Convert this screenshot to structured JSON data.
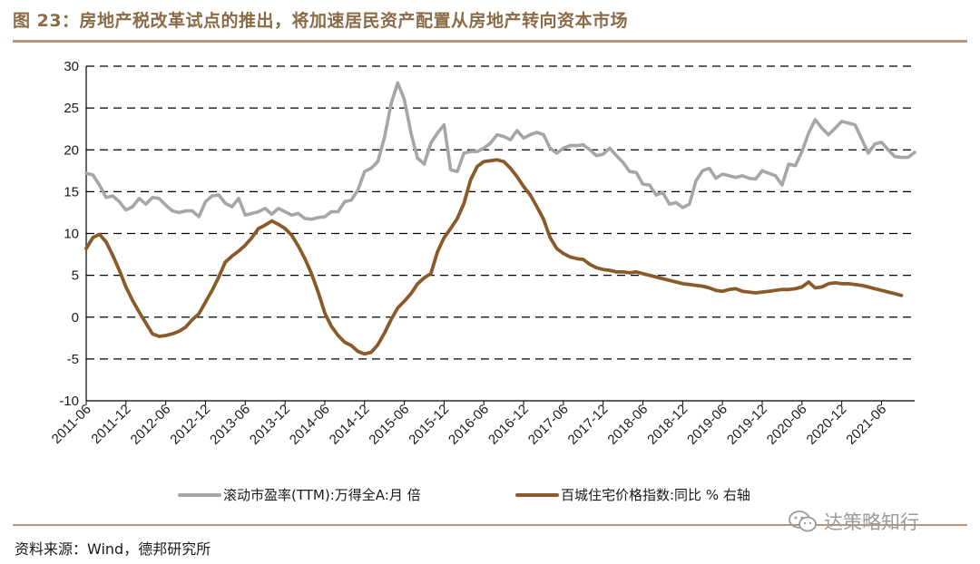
{
  "header": {
    "title": "图 23：房地产税改革试点的推出，将加速居民资产配置从房地产转向资本市场"
  },
  "footer": {
    "source": "资料来源：Wind，德邦研究所",
    "watermark": "达策略知行"
  },
  "chart_data": {
    "type": "line",
    "ylim": [
      -10,
      30
    ],
    "y_ticks": [
      30,
      25,
      20,
      15,
      10,
      5,
      0,
      -5,
      -10
    ],
    "grid": true,
    "legend_position": "bottom",
    "x_ticks": [
      "2011-06",
      "2011-12",
      "2012-06",
      "2012-12",
      "2013-06",
      "2013-12",
      "2014-06",
      "2014-12",
      "2015-06",
      "2015-12",
      "2016-06",
      "2016-12",
      "2017-06",
      "2017-12",
      "2018-06",
      "2018-12",
      "2019-06",
      "2019-12",
      "2020-06",
      "2020-12",
      "2021-06"
    ],
    "series": [
      {
        "name": "滚动市盈率(TTM):万得全A:月 倍",
        "color": "#a6a6a6",
        "points": [
          [
            "2011-06",
            17.2
          ],
          [
            "2011-07",
            17.0
          ],
          [
            "2011-08",
            15.8
          ],
          [
            "2011-09",
            14.3
          ],
          [
            "2011-10",
            14.5
          ],
          [
            "2011-11",
            13.8
          ],
          [
            "2011-12",
            12.8
          ],
          [
            "2012-01",
            13.2
          ],
          [
            "2012-02",
            14.2
          ],
          [
            "2012-03",
            13.5
          ],
          [
            "2012-04",
            14.3
          ],
          [
            "2012-05",
            14.2
          ],
          [
            "2012-06",
            13.4
          ],
          [
            "2012-07",
            12.7
          ],
          [
            "2012-08",
            12.5
          ],
          [
            "2012-09",
            12.7
          ],
          [
            "2012-10",
            12.7
          ],
          [
            "2012-11",
            12.0
          ],
          [
            "2012-12",
            13.8
          ],
          [
            "2013-01",
            14.5
          ],
          [
            "2013-02",
            14.6
          ],
          [
            "2013-03",
            13.6
          ],
          [
            "2013-04",
            13.2
          ],
          [
            "2013-05",
            14.2
          ],
          [
            "2013-06",
            12.2
          ],
          [
            "2013-07",
            12.4
          ],
          [
            "2013-08",
            12.6
          ],
          [
            "2013-09",
            13.0
          ],
          [
            "2013-10",
            12.3
          ],
          [
            "2013-11",
            13.0
          ],
          [
            "2013-12",
            12.6
          ],
          [
            "2014-01",
            12.2
          ],
          [
            "2014-02",
            12.4
          ],
          [
            "2014-03",
            11.8
          ],
          [
            "2014-04",
            11.7
          ],
          [
            "2014-05",
            11.9
          ],
          [
            "2014-06",
            12.0
          ],
          [
            "2014-07",
            12.6
          ],
          [
            "2014-08",
            12.6
          ],
          [
            "2014-09",
            13.8
          ],
          [
            "2014-10",
            14.0
          ],
          [
            "2014-11",
            15.2
          ],
          [
            "2014-12",
            17.4
          ],
          [
            "2015-01",
            17.8
          ],
          [
            "2015-02",
            18.6
          ],
          [
            "2015-03",
            21.5
          ],
          [
            "2015-04",
            25.5
          ],
          [
            "2015-05",
            28.0
          ],
          [
            "2015-06",
            26.0
          ],
          [
            "2015-07",
            22.0
          ],
          [
            "2015-08",
            19.0
          ],
          [
            "2015-09",
            18.3
          ],
          [
            "2015-10",
            20.8
          ],
          [
            "2015-11",
            22.0
          ],
          [
            "2015-12",
            23.0
          ],
          [
            "2016-01",
            17.6
          ],
          [
            "2016-02",
            17.4
          ],
          [
            "2016-03",
            19.6
          ],
          [
            "2016-04",
            19.8
          ],
          [
            "2016-05",
            19.8
          ],
          [
            "2016-06",
            20.2
          ],
          [
            "2016-07",
            20.8
          ],
          [
            "2016-08",
            21.8
          ],
          [
            "2016-09",
            21.6
          ],
          [
            "2016-10",
            21.2
          ],
          [
            "2016-11",
            22.3
          ],
          [
            "2016-12",
            21.4
          ],
          [
            "2017-01",
            21.8
          ],
          [
            "2017-02",
            22.1
          ],
          [
            "2017-03",
            21.8
          ],
          [
            "2017-04",
            20.2
          ],
          [
            "2017-05",
            19.6
          ],
          [
            "2017-06",
            20.2
          ],
          [
            "2017-07",
            20.5
          ],
          [
            "2017-08",
            20.5
          ],
          [
            "2017-09",
            20.6
          ],
          [
            "2017-10",
            20.0
          ],
          [
            "2017-11",
            19.3
          ],
          [
            "2017-12",
            19.5
          ],
          [
            "2018-01",
            20.2
          ],
          [
            "2018-02",
            19.3
          ],
          [
            "2018-03",
            18.5
          ],
          [
            "2018-04",
            17.4
          ],
          [
            "2018-05",
            17.3
          ],
          [
            "2018-06",
            15.9
          ],
          [
            "2018-07",
            15.8
          ],
          [
            "2018-08",
            14.6
          ],
          [
            "2018-09",
            14.9
          ],
          [
            "2018-10",
            13.5
          ],
          [
            "2018-11",
            13.7
          ],
          [
            "2018-12",
            13.1
          ],
          [
            "2019-01",
            13.5
          ],
          [
            "2019-02",
            16.3
          ],
          [
            "2019-03",
            17.5
          ],
          [
            "2019-04",
            17.8
          ],
          [
            "2019-05",
            16.6
          ],
          [
            "2019-06",
            17.1
          ],
          [
            "2019-07",
            16.9
          ],
          [
            "2019-08",
            16.7
          ],
          [
            "2019-09",
            16.9
          ],
          [
            "2019-10",
            16.6
          ],
          [
            "2019-11",
            16.5
          ],
          [
            "2019-12",
            17.5
          ],
          [
            "2020-01",
            17.2
          ],
          [
            "2020-02",
            16.9
          ],
          [
            "2020-03",
            15.8
          ],
          [
            "2020-04",
            18.3
          ],
          [
            "2020-05",
            18.1
          ],
          [
            "2020-06",
            19.8
          ],
          [
            "2020-07",
            22.0
          ],
          [
            "2020-08",
            23.6
          ],
          [
            "2020-09",
            22.6
          ],
          [
            "2020-10",
            21.8
          ],
          [
            "2020-11",
            22.6
          ],
          [
            "2020-12",
            23.4
          ],
          [
            "2021-01",
            23.2
          ],
          [
            "2021-02",
            23.0
          ],
          [
            "2021-03",
            21.3
          ],
          [
            "2021-04",
            19.6
          ],
          [
            "2021-05",
            20.7
          ],
          [
            "2021-06",
            20.9
          ],
          [
            "2021-07",
            20.0
          ],
          [
            "2021-08",
            19.2
          ],
          [
            "2021-09",
            19.1
          ],
          [
            "2021-10",
            19.1
          ],
          [
            "2021-11",
            19.7
          ]
        ]
      },
      {
        "name": "百城住宅价格指数:同比 % 右轴",
        "color": "#8b5a2b",
        "points": [
          [
            "2011-06",
            8.2
          ],
          [
            "2011-07",
            9.5
          ],
          [
            "2011-08",
            9.9
          ],
          [
            "2011-09",
            9.0
          ],
          [
            "2011-10",
            7.4
          ],
          [
            "2011-11",
            5.6
          ],
          [
            "2011-12",
            3.6
          ],
          [
            "2012-01",
            2.0
          ],
          [
            "2012-02",
            0.6
          ],
          [
            "2012-03",
            -0.7
          ],
          [
            "2012-04",
            -2.0
          ],
          [
            "2012-05",
            -2.3
          ],
          [
            "2012-06",
            -2.2
          ],
          [
            "2012-07",
            -2.0
          ],
          [
            "2012-08",
            -1.7
          ],
          [
            "2012-09",
            -1.2
          ],
          [
            "2012-10",
            -0.3
          ],
          [
            "2012-11",
            0.4
          ],
          [
            "2012-12",
            1.8
          ],
          [
            "2013-01",
            3.2
          ],
          [
            "2013-02",
            4.8
          ],
          [
            "2013-03",
            6.6
          ],
          [
            "2013-04",
            7.3
          ],
          [
            "2013-05",
            7.9
          ],
          [
            "2013-06",
            8.6
          ],
          [
            "2013-07",
            9.5
          ],
          [
            "2013-08",
            10.6
          ],
          [
            "2013-09",
            11.0
          ],
          [
            "2013-10",
            11.5
          ],
          [
            "2013-11",
            11.1
          ],
          [
            "2013-12",
            10.6
          ],
          [
            "2014-01",
            9.8
          ],
          [
            "2014-02",
            8.5
          ],
          [
            "2014-03",
            7.0
          ],
          [
            "2014-04",
            5.2
          ],
          [
            "2014-05",
            3.0
          ],
          [
            "2014-06",
            0.5
          ],
          [
            "2014-07",
            -1.1
          ],
          [
            "2014-08",
            -2.2
          ],
          [
            "2014-09",
            -3.0
          ],
          [
            "2014-10",
            -3.4
          ],
          [
            "2014-11",
            -4.1
          ],
          [
            "2014-12",
            -4.4
          ],
          [
            "2015-01",
            -4.2
          ],
          [
            "2015-02",
            -3.3
          ],
          [
            "2015-03",
            -1.9
          ],
          [
            "2015-04",
            -0.3
          ],
          [
            "2015-05",
            1.1
          ],
          [
            "2015-06",
            1.9
          ],
          [
            "2015-07",
            2.8
          ],
          [
            "2015-08",
            4.0
          ],
          [
            "2015-09",
            4.7
          ],
          [
            "2015-10",
            5.2
          ],
          [
            "2015-11",
            7.8
          ],
          [
            "2015-12",
            9.5
          ],
          [
            "2016-01",
            10.6
          ],
          [
            "2016-02",
            11.8
          ],
          [
            "2016-03",
            13.6
          ],
          [
            "2016-04",
            16.4
          ],
          [
            "2016-05",
            18.0
          ],
          [
            "2016-06",
            18.6
          ],
          [
            "2016-07",
            18.7
          ],
          [
            "2016-08",
            18.8
          ],
          [
            "2016-09",
            18.6
          ],
          [
            "2016-10",
            17.8
          ],
          [
            "2016-11",
            16.8
          ],
          [
            "2016-12",
            15.6
          ],
          [
            "2017-01",
            14.6
          ],
          [
            "2017-02",
            13.2
          ],
          [
            "2017-03",
            11.7
          ],
          [
            "2017-04",
            9.5
          ],
          [
            "2017-05",
            8.2
          ],
          [
            "2017-06",
            7.6
          ],
          [
            "2017-07",
            7.2
          ],
          [
            "2017-08",
            7.0
          ],
          [
            "2017-09",
            6.9
          ],
          [
            "2017-10",
            6.3
          ],
          [
            "2017-11",
            5.9
          ],
          [
            "2017-12",
            5.7
          ],
          [
            "2018-01",
            5.6
          ],
          [
            "2018-02",
            5.4
          ],
          [
            "2018-03",
            5.4
          ],
          [
            "2018-04",
            5.3
          ],
          [
            "2018-05",
            5.4
          ],
          [
            "2018-06",
            5.2
          ],
          [
            "2018-07",
            5.0
          ],
          [
            "2018-08",
            4.8
          ],
          [
            "2018-09",
            4.6
          ],
          [
            "2018-10",
            4.4
          ],
          [
            "2018-11",
            4.2
          ],
          [
            "2018-12",
            4.0
          ],
          [
            "2019-01",
            3.9
          ],
          [
            "2019-02",
            3.8
          ],
          [
            "2019-03",
            3.7
          ],
          [
            "2019-04",
            3.5
          ],
          [
            "2019-05",
            3.2
          ],
          [
            "2019-06",
            3.1
          ],
          [
            "2019-07",
            3.3
          ],
          [
            "2019-08",
            3.4
          ],
          [
            "2019-09",
            3.1
          ],
          [
            "2019-10",
            3.0
          ],
          [
            "2019-11",
            2.9
          ],
          [
            "2019-12",
            3.0
          ],
          [
            "2020-01",
            3.1
          ],
          [
            "2020-02",
            3.2
          ],
          [
            "2020-03",
            3.3
          ],
          [
            "2020-04",
            3.3
          ],
          [
            "2020-05",
            3.4
          ],
          [
            "2020-06",
            3.6
          ],
          [
            "2020-07",
            4.2
          ],
          [
            "2020-08",
            3.5
          ],
          [
            "2020-09",
            3.6
          ],
          [
            "2020-10",
            4.0
          ],
          [
            "2020-11",
            4.1
          ],
          [
            "2020-12",
            4.0
          ],
          [
            "2021-01",
            4.0
          ],
          [
            "2021-02",
            3.9
          ],
          [
            "2021-03",
            3.8
          ],
          [
            "2021-04",
            3.6
          ],
          [
            "2021-05",
            3.4
          ],
          [
            "2021-06",
            3.2
          ],
          [
            "2021-07",
            3.0
          ],
          [
            "2021-08",
            2.8
          ],
          [
            "2021-09",
            2.6
          ]
        ]
      }
    ]
  }
}
